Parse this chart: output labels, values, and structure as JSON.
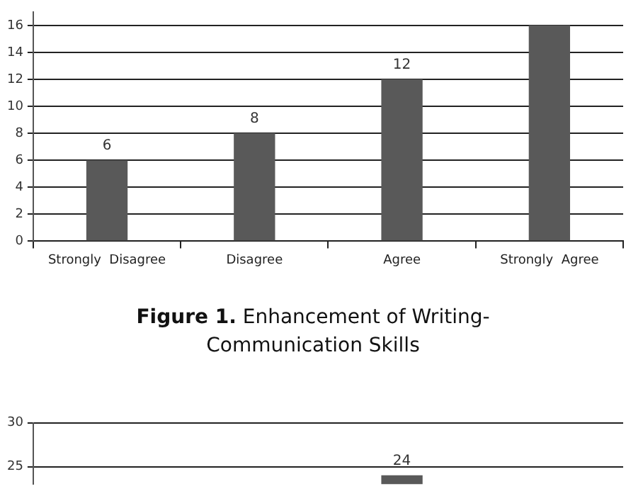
{
  "chart_data": [
    {
      "type": "bar",
      "title": "Figure 1. Enhancement of Writing-Communication Skills",
      "categories": [
        "Strongly  Disagree",
        "Disagree",
        "Agree",
        "Strongly  Agree"
      ],
      "values": [
        6,
        8,
        12,
        16
      ],
      "value_labels": [
        "6",
        "8",
        "12",
        null
      ],
      "color": "#595959",
      "ylim": [
        0,
        17
      ],
      "yticks": [
        0,
        2,
        4,
        6,
        8,
        10,
        12,
        14,
        16
      ],
      "grid": "y"
    },
    {
      "type": "bar",
      "categories": [
        null,
        null,
        null,
        null
      ],
      "values": [
        null,
        null,
        24,
        null
      ],
      "value_labels": [
        null,
        null,
        "24",
        null
      ],
      "color": "#595959",
      "ylim": [
        23,
        30
      ],
      "yticks": [
        25,
        30
      ],
      "grid": "y",
      "tick_labels": "y"
    }
  ]
}
